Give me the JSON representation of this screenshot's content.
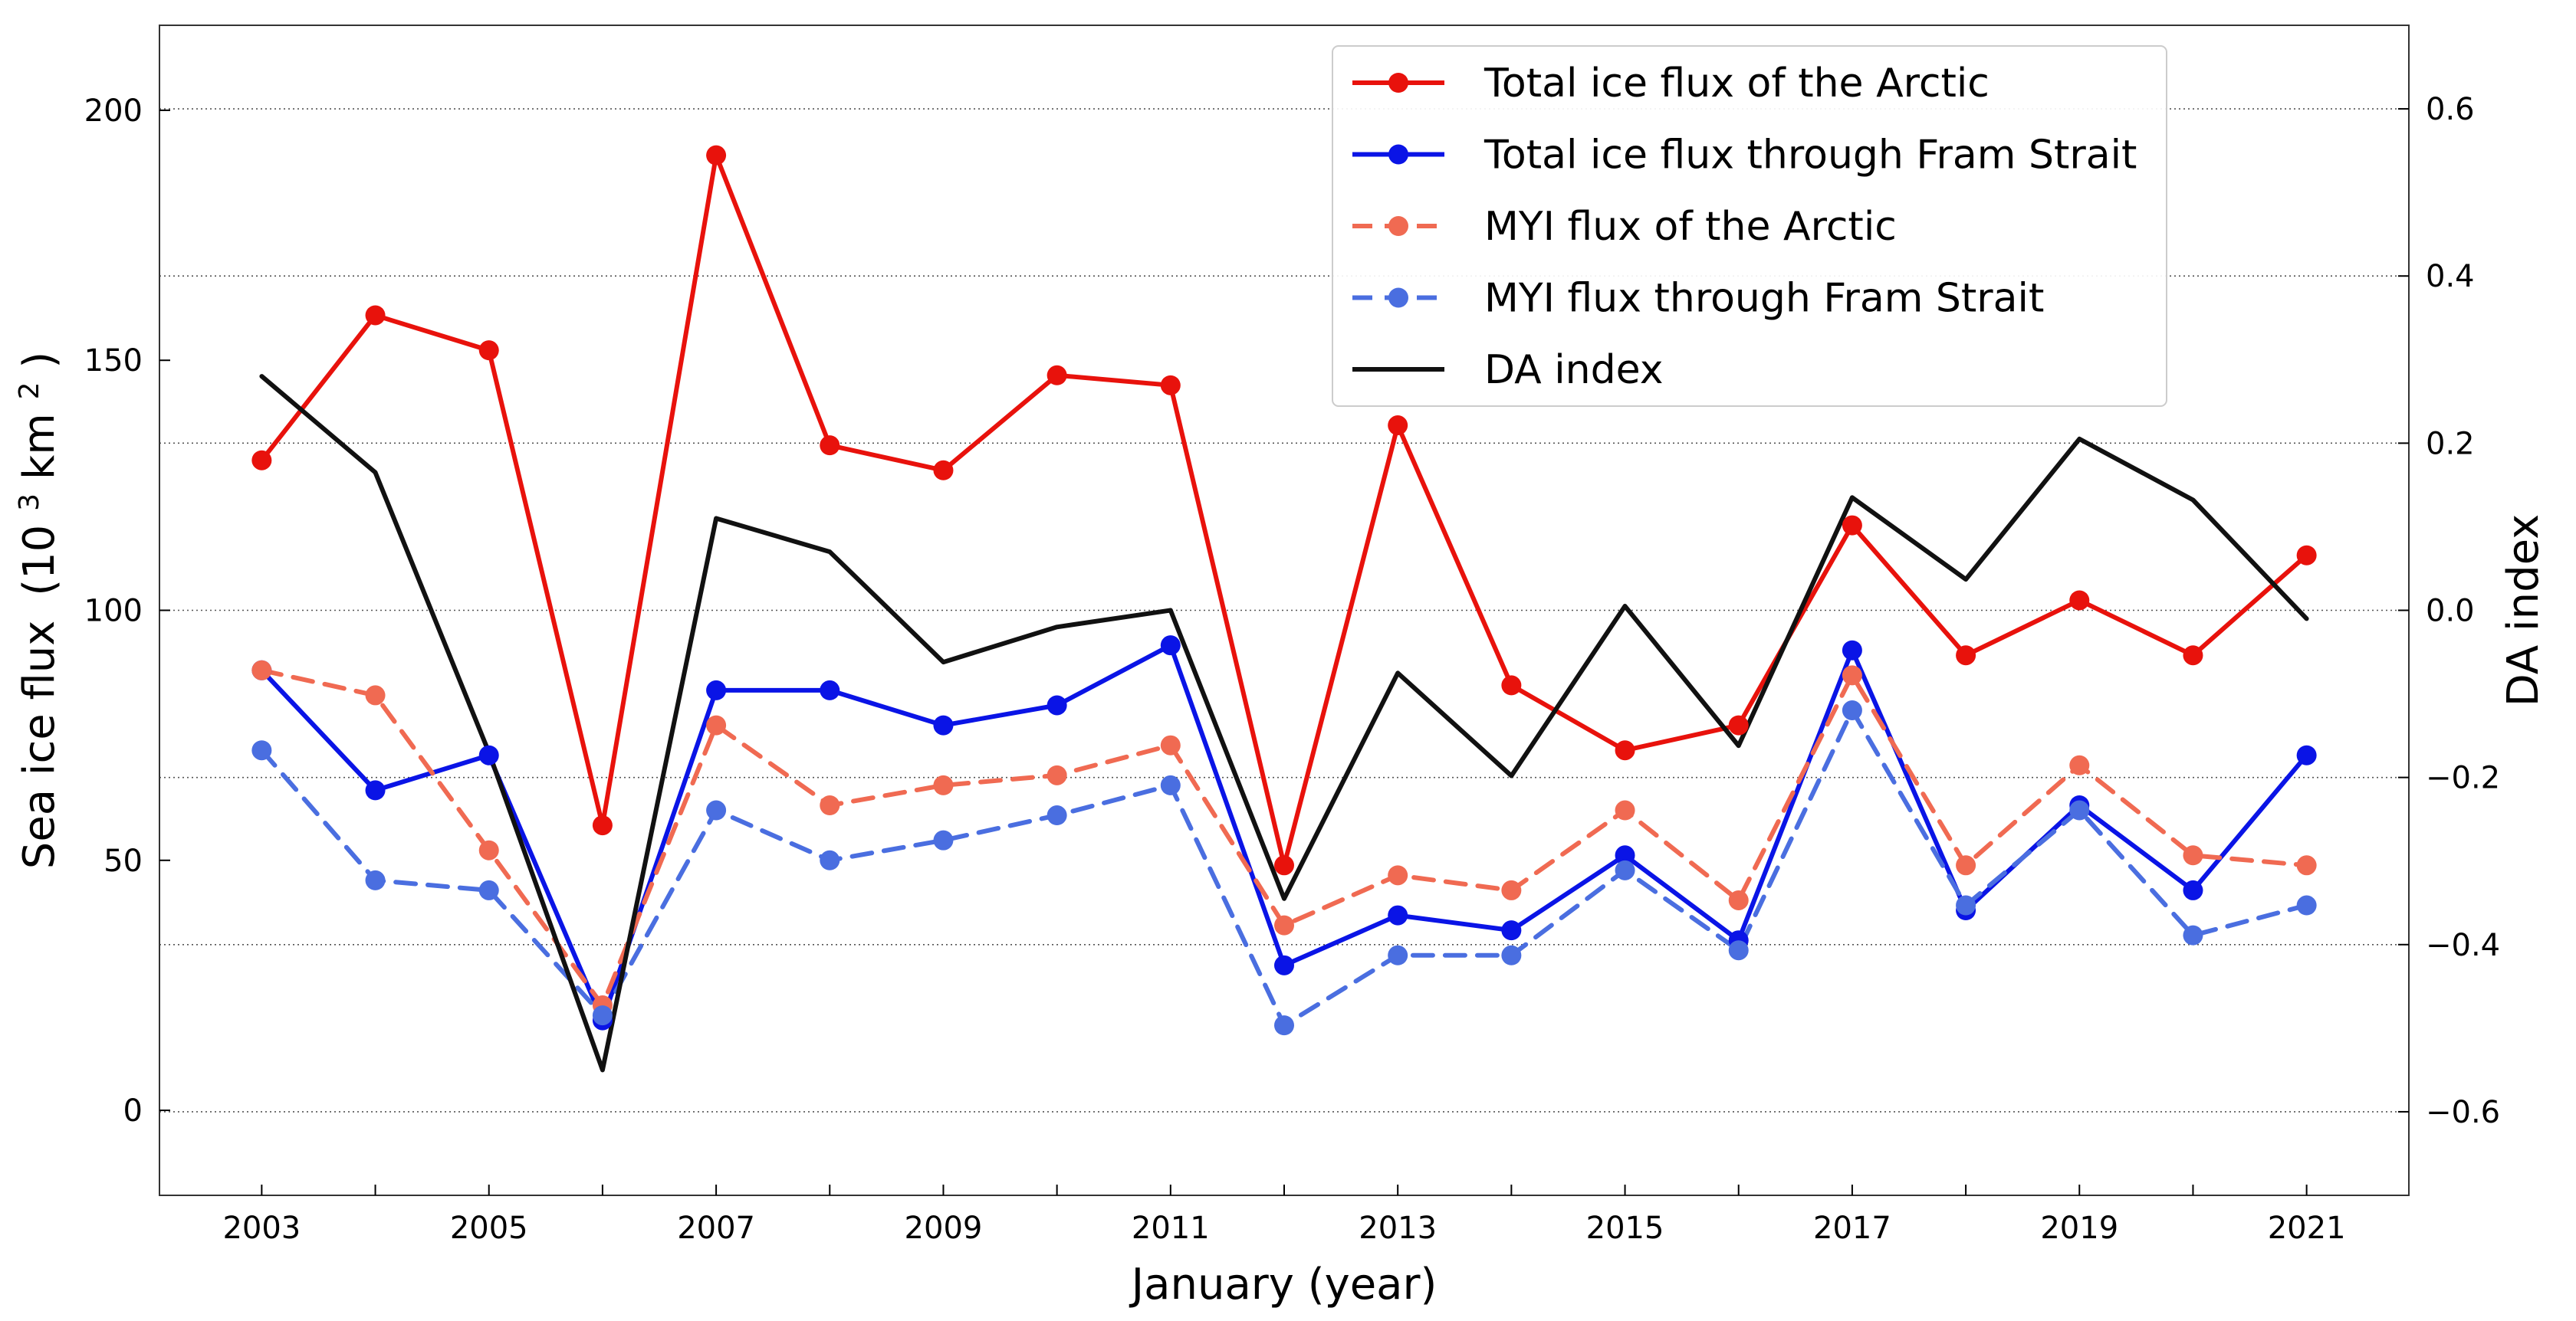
{
  "chart_data": {
    "type": "line",
    "xlabel": "January (year)",
    "ylabel": "Sea ice flux",
    "ylabel_unit_prefix": "(10",
    "ylabel_unit_exp": "3",
    "ylabel_unit_mid": " km",
    "ylabel_unit_exp2": "2",
    "ylabel_unit_suffix": ")",
    "y2label": "DA index",
    "xlim": [
      2002.1,
      2021.9
    ],
    "ylim": [
      -17,
      217
    ],
    "y2lim": [
      -0.7,
      0.7
    ],
    "x_ticks": [
      "2003",
      "2005",
      "2007",
      "2009",
      "2011",
      "2013",
      "2015",
      "2017",
      "2019",
      "2021"
    ],
    "y_ticks": [
      "0",
      "50",
      "100",
      "150",
      "200"
    ],
    "y2_ticks": [
      "−0.6",
      "−0.4",
      "−0.2",
      "0.0",
      "0.2",
      "0.4",
      "0.6"
    ],
    "grid": "horizontal dotted at right-axis ticks",
    "legend_position": "top-right",
    "x": [
      2003,
      2004,
      2005,
      2006,
      2007,
      2008,
      2009,
      2010,
      2011,
      2012,
      2013,
      2014,
      2015,
      2016,
      2017,
      2018,
      2019,
      2020,
      2021
    ],
    "series": [
      {
        "name": "Total ice flux of the Arctic",
        "axis": "left",
        "color": "#e8120c",
        "dashed": false,
        "marker": true,
        "values": [
          130,
          159,
          152,
          57,
          191,
          133,
          128,
          147,
          145,
          49,
          137,
          85,
          72,
          77,
          117,
          91,
          102,
          91,
          111
        ]
      },
      {
        "name": "Total ice flux through Fram Strait",
        "axis": "left",
        "color": "#0a14e6",
        "dashed": false,
        "marker": true,
        "values": [
          88,
          64,
          71,
          18,
          84,
          84,
          77,
          81,
          93,
          29,
          39,
          36,
          51,
          34,
          92,
          40,
          61,
          44,
          71
        ]
      },
      {
        "name": "MYI flux of the Arctic",
        "axis": "left",
        "color": "#f06a52",
        "dashed": true,
        "marker": true,
        "values": [
          88,
          83,
          52,
          21,
          77,
          61,
          65,
          67,
          73,
          37,
          47,
          44,
          60,
          42,
          87,
          49,
          69,
          51,
          49
        ]
      },
      {
        "name": "MYI flux through Fram Strait",
        "axis": "left",
        "color": "#4a6ee0",
        "dashed": true,
        "marker": true,
        "values": [
          72,
          46,
          44,
          19,
          60,
          50,
          54,
          59,
          65,
          17,
          31,
          31,
          48,
          32,
          80,
          41,
          60,
          35,
          41
        ]
      },
      {
        "name": "DA index",
        "axis": "right",
        "color": "#111111",
        "dashed": false,
        "marker": false,
        "values": [
          0.28,
          0.165,
          -0.17,
          -0.55,
          0.11,
          0.07,
          -0.062,
          -0.02,
          0.0,
          -0.345,
          -0.075,
          -0.198,
          0.005,
          -0.162,
          0.135,
          0.037,
          0.205,
          0.132,
          -0.01
        ]
      }
    ]
  }
}
